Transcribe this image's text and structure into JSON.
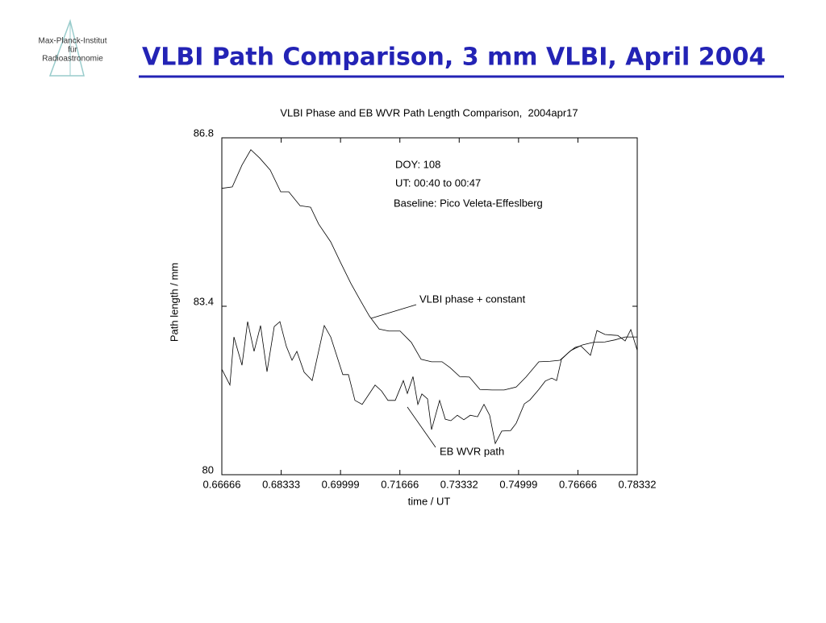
{
  "header": {
    "logo_lines": [
      "Max-Planck-Institut",
      "für",
      "Radioastronomie"
    ],
    "title": "VLBI Path Comparison, 3 mm VLBI, April 2004"
  },
  "chart_data": {
    "type": "line",
    "title": "VLBI Phase and EB WVR Path Length Comparison,  2004apr17",
    "x_label": "time / UT",
    "y_label": "Path length / mm",
    "annotations": [
      "DOY: 108",
      "UT: 00:40 to 00:47",
      "Baseline: Pico Veleta-Effeslberg"
    ],
    "xlim": [
      0.66666,
      0.78332
    ],
    "xticks": [
      0.66666,
      0.68333,
      0.69999,
      0.71666,
      0.73332,
      0.74999,
      0.76666,
      0.78332
    ],
    "ylim": [
      80,
      86.8
    ],
    "yticks": [
      80,
      83.4,
      86.8
    ],
    "series": [
      {
        "name": "VLBI phase + constant",
        "color": "#000000",
        "x": [
          0.66666,
          0.6696,
          0.67232,
          0.67481,
          0.67731,
          0.68025,
          0.6832,
          0.68546,
          0.68863,
          0.69158,
          0.69384,
          0.69724,
          0.69996,
          0.7029,
          0.70562,
          0.70811,
          0.71083,
          0.71355,
          0.71672,
          0.71989,
          0.72261,
          0.72556,
          0.7285,
          0.73077,
          0.73348,
          0.7362,
          0.73915,
          0.74255,
          0.74594,
          0.74934,
          0.75206,
          0.75569,
          0.75886,
          0.76158,
          0.76475,
          0.76792,
          0.77086,
          0.77426,
          0.77698,
          0.77993,
          0.78332
        ],
        "values": [
          85.78,
          85.81,
          86.25,
          86.56,
          86.39,
          86.15,
          85.71,
          85.71,
          85.43,
          85.4,
          85.06,
          84.7,
          84.29,
          83.86,
          83.51,
          83.2,
          82.94,
          82.9,
          82.9,
          82.67,
          82.33,
          82.28,
          82.28,
          82.16,
          81.98,
          81.97,
          81.72,
          81.71,
          81.71,
          81.77,
          81.97,
          82.28,
          82.29,
          82.31,
          82.51,
          82.62,
          82.67,
          82.68,
          82.72,
          82.78,
          82.78
        ]
      },
      {
        "name": "EB WVR path",
        "color": "#000000",
        "x": [
          0.66666,
          0.66893,
          0.67006,
          0.67232,
          0.67391,
          0.67572,
          0.67753,
          0.67935,
          0.68138,
          0.68297,
          0.68478,
          0.68637,
          0.68773,
          0.68977,
          0.69203,
          0.69543,
          0.69724,
          0.70064,
          0.70222,
          0.70404,
          0.70608,
          0.7097,
          0.71151,
          0.71332,
          0.71536,
          0.71763,
          0.71876,
          0.72035,
          0.72171,
          0.72284,
          0.72443,
          0.72556,
          0.72782,
          0.72941,
          0.73099,
          0.7328,
          0.73462,
          0.73643,
          0.73847,
          0.74028,
          0.74187,
          0.74345,
          0.74527,
          0.74776,
          0.74934,
          0.75161,
          0.75319,
          0.75568,
          0.75749,
          0.75931,
          0.76067,
          0.76203,
          0.76407,
          0.76588,
          0.76747,
          0.77018,
          0.772,
          0.77426,
          0.77788,
          0.77992,
          0.78151,
          0.78332
        ],
        "values": [
          82.13,
          81.81,
          82.78,
          82.21,
          83.09,
          82.49,
          83.01,
          82.08,
          82.99,
          83.09,
          82.59,
          82.31,
          82.49,
          82.07,
          81.9,
          83.01,
          82.78,
          82.02,
          82.02,
          81.5,
          81.42,
          81.81,
          81.69,
          81.5,
          81.5,
          81.9,
          81.64,
          81.98,
          81.42,
          81.63,
          81.53,
          80.91,
          81.5,
          81.12,
          81.09,
          81.2,
          81.11,
          81.2,
          81.17,
          81.42,
          81.2,
          80.63,
          80.88,
          80.89,
          81.04,
          81.43,
          81.51,
          81.72,
          81.89,
          81.95,
          81.9,
          82.33,
          82.47,
          82.57,
          82.6,
          82.41,
          82.91,
          82.83,
          82.81,
          82.7,
          82.93,
          82.51
        ]
      }
    ]
  }
}
